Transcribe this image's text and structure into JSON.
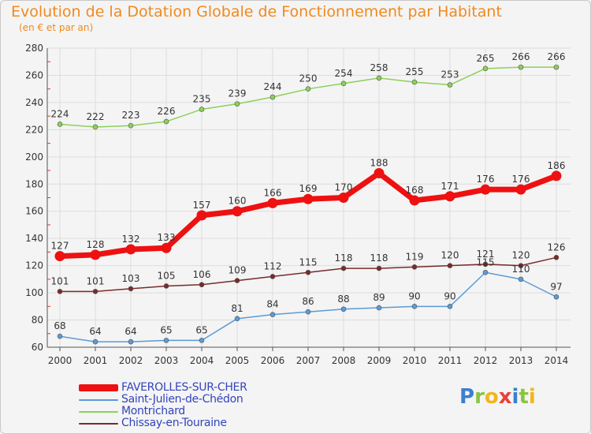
{
  "title": "Evolution de la Dotation Globale de Fonctionnement par Habitant",
  "subtitle": "(en € et par an)",
  "logo": {
    "letters": [
      {
        "ch": "P",
        "color": "#3b7fd0"
      },
      {
        "ch": "r",
        "color": "#8ac43f"
      },
      {
        "ch": "o",
        "color": "#f2b51c"
      },
      {
        "ch": "x",
        "color": "#e8413b"
      },
      {
        "ch": "i",
        "color": "#3b7fd0"
      },
      {
        "ch": "t",
        "color": "#8ac43f"
      },
      {
        "ch": "i",
        "color": "#f2b51c"
      }
    ]
  },
  "chart_data": {
    "type": "line",
    "x": [
      "2000",
      "2001",
      "2002",
      "2003",
      "2004",
      "2005",
      "2006",
      "2007",
      "2008",
      "2009",
      "2010",
      "2011",
      "2012",
      "2013",
      "2014"
    ],
    "ylim": [
      60,
      280
    ],
    "yticks": [
      60,
      80,
      100,
      120,
      140,
      160,
      180,
      200,
      220,
      240,
      260,
      280
    ],
    "grid": true,
    "legend_position": "bottom-left",
    "series": [
      {
        "name": "FAVEROLLES-SUR-CHER",
        "color": "#ee1111",
        "emphasis": true,
        "values": [
          127,
          128,
          132,
          133,
          157,
          160,
          166,
          169,
          170,
          188,
          168,
          171,
          176,
          176,
          186
        ]
      },
      {
        "name": "Saint-Julien-de-Chédon",
        "color": "#5b9bd5",
        "emphasis": false,
        "values": [
          68,
          64,
          64,
          65,
          65,
          81,
          84,
          86,
          88,
          89,
          90,
          90,
          115,
          110,
          97
        ]
      },
      {
        "name": "Montrichard",
        "color": "#8cd05a",
        "emphasis": false,
        "values": [
          224,
          222,
          223,
          226,
          235,
          239,
          244,
          250,
          254,
          258,
          255,
          253,
          265,
          266,
          266
        ]
      },
      {
        "name": "Chissay-en-Touraine",
        "color": "#7a2a2a",
        "emphasis": false,
        "values": [
          101,
          101,
          103,
          105,
          106,
          109,
          112,
          115,
          118,
          118,
          119,
          120,
          121,
          120,
          126
        ]
      }
    ]
  }
}
